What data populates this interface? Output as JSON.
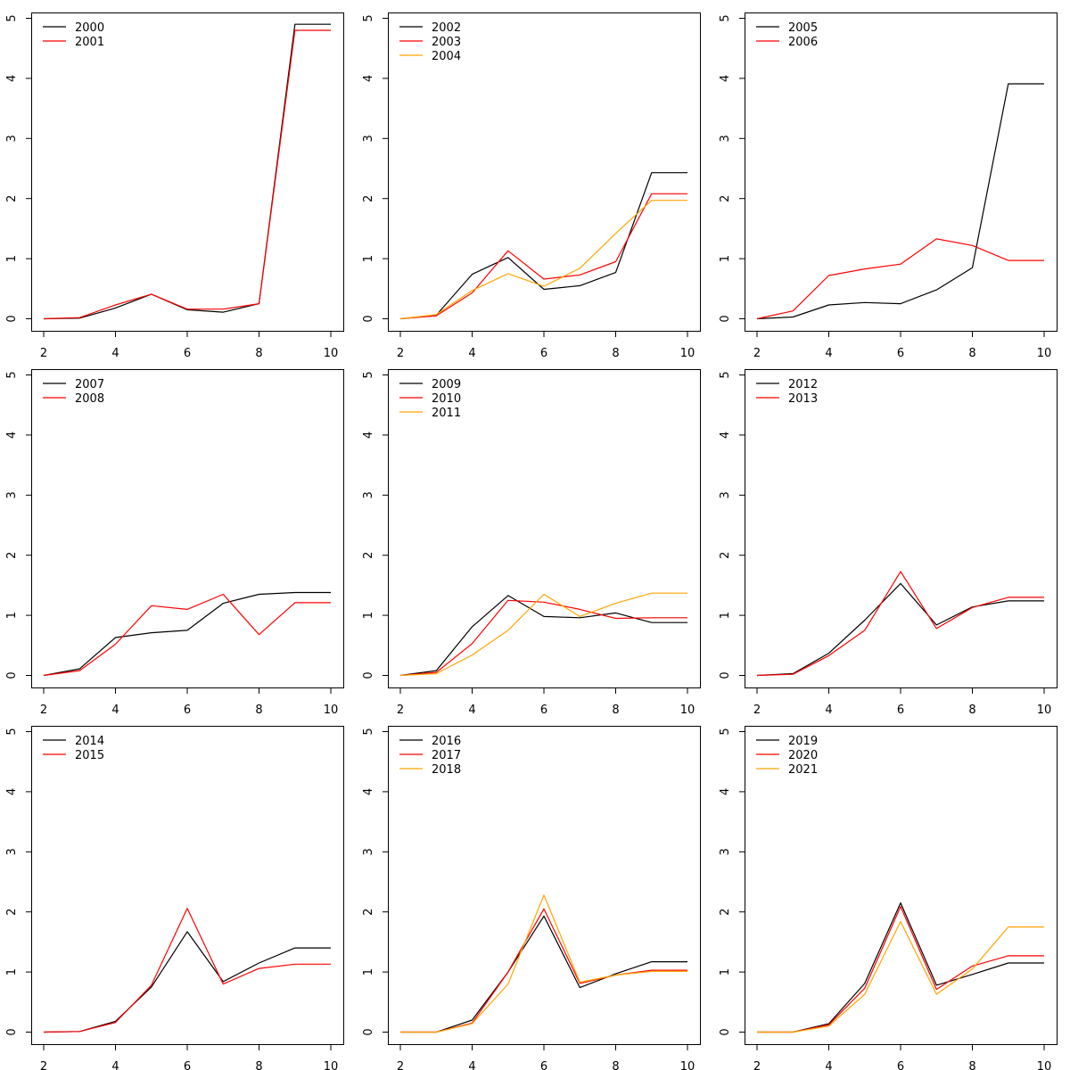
{
  "chart_data": [
    {
      "type": "line",
      "x": [
        2,
        3,
        4,
        5,
        6,
        7,
        8,
        9,
        10
      ],
      "xlim": [
        2,
        10
      ],
      "ylim": [
        0,
        5
      ],
      "xticks": [
        "2",
        "4",
        "6",
        "8",
        "10"
      ],
      "yticks": [
        "0",
        "1",
        "2",
        "3",
        "4",
        "5"
      ],
      "legend": "top-left",
      "series": [
        {
          "name": "2000",
          "color": "#000000",
          "values": [
            0,
            0.01,
            0.18,
            0.41,
            0.15,
            0.11,
            0.25,
            4.9,
            4.9
          ]
        },
        {
          "name": "2001",
          "color": "#ff0000",
          "values": [
            0,
            0.02,
            0.23,
            0.41,
            0.16,
            0.16,
            0.25,
            4.8,
            4.8
          ]
        }
      ]
    },
    {
      "type": "line",
      "x": [
        2,
        3,
        4,
        5,
        6,
        7,
        8,
        9,
        10
      ],
      "xlim": [
        2,
        10
      ],
      "ylim": [
        0,
        5
      ],
      "xticks": [
        "2",
        "4",
        "6",
        "8",
        "10"
      ],
      "yticks": [
        "0",
        "1",
        "2",
        "3",
        "4",
        "5"
      ],
      "legend": "top-left",
      "series": [
        {
          "name": "2002",
          "color": "#000000",
          "values": [
            0,
            0.06,
            0.74,
            1.02,
            0.49,
            0.55,
            0.77,
            2.43,
            2.43
          ]
        },
        {
          "name": "2003",
          "color": "#ff0000",
          "values": [
            0,
            0.05,
            0.43,
            1.13,
            0.66,
            0.73,
            0.95,
            2.08,
            2.08
          ]
        },
        {
          "name": "2004",
          "color": "#ffa500",
          "values": [
            0,
            0.07,
            0.47,
            0.75,
            0.54,
            0.84,
            1.42,
            1.97,
            1.97
          ]
        }
      ]
    },
    {
      "type": "line",
      "x": [
        2,
        3,
        4,
        5,
        6,
        7,
        8,
        9,
        10
      ],
      "xlim": [
        2,
        10
      ],
      "ylim": [
        0,
        5
      ],
      "xticks": [
        "2",
        "4",
        "6",
        "8",
        "10"
      ],
      "yticks": [
        "0",
        "1",
        "2",
        "3",
        "4",
        "5"
      ],
      "legend": "top-left",
      "series": [
        {
          "name": "2005",
          "color": "#000000",
          "values": [
            0,
            0.03,
            0.23,
            0.27,
            0.25,
            0.48,
            0.85,
            3.91,
            3.91
          ]
        },
        {
          "name": "2006",
          "color": "#ff0000",
          "values": [
            0,
            0.13,
            0.72,
            0.83,
            0.91,
            1.33,
            1.22,
            0.97,
            0.97
          ]
        }
      ]
    },
    {
      "type": "line",
      "x": [
        2,
        3,
        4,
        5,
        6,
        7,
        8,
        9,
        10
      ],
      "xlim": [
        2,
        10
      ],
      "ylim": [
        0,
        5
      ],
      "xticks": [
        "2",
        "4",
        "6",
        "8",
        "10"
      ],
      "yticks": [
        "0",
        "1",
        "2",
        "3",
        "4",
        "5"
      ],
      "legend": "top-left",
      "series": [
        {
          "name": "2007",
          "color": "#000000",
          "values": [
            0,
            0.11,
            0.63,
            0.71,
            0.75,
            1.2,
            1.35,
            1.38,
            1.38
          ]
        },
        {
          "name": "2008",
          "color": "#ff0000",
          "values": [
            0,
            0.08,
            0.52,
            1.16,
            1.1,
            1.35,
            0.68,
            1.21,
            1.21
          ]
        }
      ]
    },
    {
      "type": "line",
      "x": [
        2,
        3,
        4,
        5,
        6,
        7,
        8,
        9,
        10
      ],
      "xlim": [
        2,
        10
      ],
      "ylim": [
        0,
        5
      ],
      "xticks": [
        "2",
        "4",
        "6",
        "8",
        "10"
      ],
      "yticks": [
        "0",
        "1",
        "2",
        "3",
        "4",
        "5"
      ],
      "legend": "top-left",
      "series": [
        {
          "name": "2009",
          "color": "#000000",
          "values": [
            0,
            0.08,
            0.81,
            1.33,
            0.98,
            0.96,
            1.04,
            0.88,
            0.88
          ]
        },
        {
          "name": "2010",
          "color": "#ff0000",
          "values": [
            0,
            0.05,
            0.53,
            1.25,
            1.22,
            1.1,
            0.95,
            0.96,
            0.96
          ]
        },
        {
          "name": "2011",
          "color": "#ffa500",
          "values": [
            0,
            0.03,
            0.34,
            0.75,
            1.35,
            0.98,
            1.2,
            1.37,
            1.37
          ]
        }
      ]
    },
    {
      "type": "line",
      "x": [
        2,
        3,
        4,
        5,
        6,
        7,
        8,
        9,
        10
      ],
      "xlim": [
        2,
        10
      ],
      "ylim": [
        0,
        5
      ],
      "xticks": [
        "2",
        "4",
        "6",
        "8",
        "10"
      ],
      "yticks": [
        "0",
        "1",
        "2",
        "3",
        "4",
        "5"
      ],
      "legend": "top-left",
      "series": [
        {
          "name": "2012",
          "color": "#000000",
          "values": [
            0,
            0.03,
            0.37,
            0.92,
            1.53,
            0.84,
            1.14,
            1.24,
            1.24
          ]
        },
        {
          "name": "2013",
          "color": "#ff0000",
          "values": [
            0,
            0.02,
            0.33,
            0.75,
            1.73,
            0.78,
            1.13,
            1.3,
            1.3
          ]
        }
      ]
    },
    {
      "type": "line",
      "x": [
        2,
        3,
        4,
        5,
        6,
        7,
        8,
        9,
        10
      ],
      "xlim": [
        2,
        10
      ],
      "ylim": [
        0,
        5
      ],
      "xticks": [
        "2",
        "4",
        "6",
        "8",
        "10"
      ],
      "yticks": [
        "0",
        "1",
        "2",
        "3",
        "4",
        "5"
      ],
      "legend": "top-left",
      "series": [
        {
          "name": "2014",
          "color": "#000000",
          "values": [
            0,
            0.01,
            0.18,
            0.75,
            1.67,
            0.84,
            1.15,
            1.4,
            1.4
          ]
        },
        {
          "name": "2015",
          "color": "#ff0000",
          "values": [
            0,
            0.01,
            0.16,
            0.78,
            2.06,
            0.8,
            1.06,
            1.13,
            1.13
          ]
        }
      ]
    },
    {
      "type": "line",
      "x": [
        2,
        3,
        4,
        5,
        6,
        7,
        8,
        9,
        10
      ],
      "xlim": [
        2,
        10
      ],
      "ylim": [
        0,
        5
      ],
      "xticks": [
        "2",
        "4",
        "6",
        "8",
        "10"
      ],
      "yticks": [
        "0",
        "1",
        "2",
        "3",
        "4",
        "5"
      ],
      "legend": "top-left",
      "series": [
        {
          "name": "2016",
          "color": "#000000",
          "values": [
            0,
            0,
            0.2,
            1,
            1.93,
            0.74,
            0.97,
            1.17,
            1.17
          ]
        },
        {
          "name": "2017",
          "color": "#ff0000",
          "values": [
            0,
            0,
            0.15,
            1,
            2.05,
            0.81,
            0.95,
            1.03,
            1.03
          ]
        },
        {
          "name": "2018",
          "color": "#ffa500",
          "values": [
            0,
            0,
            0.14,
            0.8,
            2.28,
            0.83,
            0.95,
            1.01,
            1.01
          ]
        }
      ]
    },
    {
      "type": "line",
      "x": [
        2,
        3,
        4,
        5,
        6,
        7,
        8,
        9,
        10
      ],
      "xlim": [
        2,
        10
      ],
      "ylim": [
        0,
        5
      ],
      "xticks": [
        "2",
        "4",
        "6",
        "8",
        "10"
      ],
      "yticks": [
        "0",
        "1",
        "2",
        "3",
        "4",
        "5"
      ],
      "legend": "top-left",
      "series": [
        {
          "name": "2019",
          "color": "#000000",
          "values": [
            0,
            0,
            0.14,
            0.81,
            2.15,
            0.78,
            0.96,
            1.15,
            1.15
          ]
        },
        {
          "name": "2020",
          "color": "#ff0000",
          "values": [
            0,
            0,
            0.12,
            0.73,
            2.09,
            0.71,
            1.1,
            1.27,
            1.27
          ]
        },
        {
          "name": "2021",
          "color": "#ffa500",
          "values": [
            0,
            0,
            0.1,
            0.63,
            1.84,
            0.63,
            1.05,
            1.75,
            1.75
          ]
        }
      ]
    }
  ]
}
